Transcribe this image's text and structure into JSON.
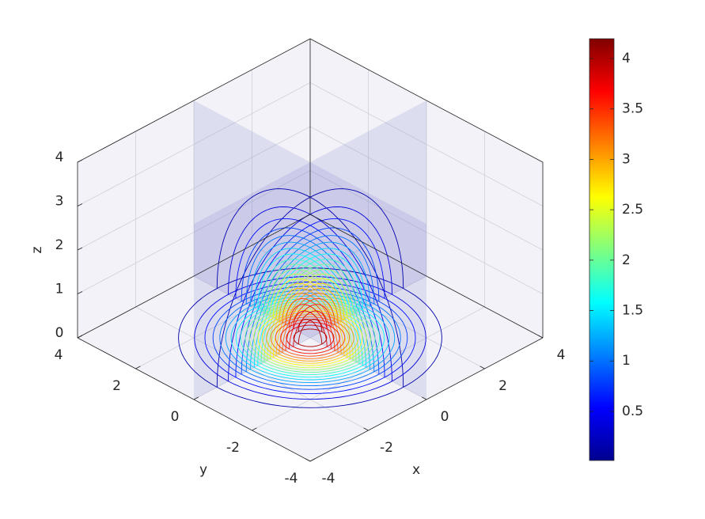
{
  "chart_data": {
    "type": "contourslice",
    "xlabel": "x",
    "ylabel": "y",
    "zlabel": "z",
    "xlim": [
      -4,
      4
    ],
    "ylim": [
      -4,
      4
    ],
    "zlim": [
      0,
      4
    ],
    "xticks": [
      -4,
      -2,
      0,
      2,
      4
    ],
    "yticks": [
      -4,
      -2,
      0,
      2,
      4
    ],
    "zticks": [
      0,
      1,
      2,
      3,
      4
    ],
    "grid": true,
    "slices": {
      "x": [
        0
      ],
      "y": [
        0
      ],
      "z": [
        0
      ]
    },
    "levels": [
      0.2,
      0.4,
      0.6,
      0.8,
      1.0,
      1.2,
      1.4,
      1.6,
      1.8,
      2.0,
      2.2,
      2.4,
      2.6,
      2.8,
      3.0,
      3.2,
      3.4,
      3.6,
      3.8,
      4.0
    ],
    "colormap": "jet",
    "colorbar": {
      "clim": [
        0.013,
        4.196
      ],
      "ticks": [
        0.5,
        1,
        1.5,
        2,
        2.5,
        3,
        3.5,
        4
      ]
    }
  }
}
